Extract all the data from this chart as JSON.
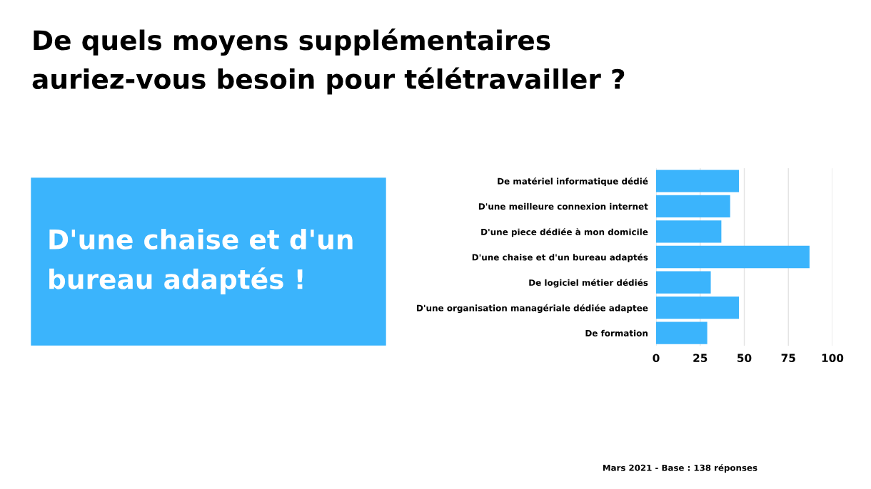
{
  "chart_data": {
    "type": "bar",
    "orientation": "horizontal",
    "title": "De quels moyens supplémentaires\nauriez-vous besoin pour télétravailler ?",
    "categories": [
      "De matériel informatique dédié",
      "D'une meilleure connexion internet",
      "D'une piece dédiée à mon domicile",
      "D'une chaise et d'un bureau adaptés",
      "De logiciel métier dédiés",
      "D'une organisation managériale dédiée adaptee",
      "De formation"
    ],
    "values": [
      47,
      42,
      37,
      87,
      31,
      47,
      29
    ],
    "color": "#3bb4fc",
    "xlim": [
      0,
      100
    ],
    "xticks": [
      0,
      25,
      50,
      75,
      100
    ],
    "grid": "x",
    "annotations": [
      "D'une chaise et d'un\nbureau adaptés !",
      "Mars 2021 - Base : 138 réponses"
    ]
  }
}
